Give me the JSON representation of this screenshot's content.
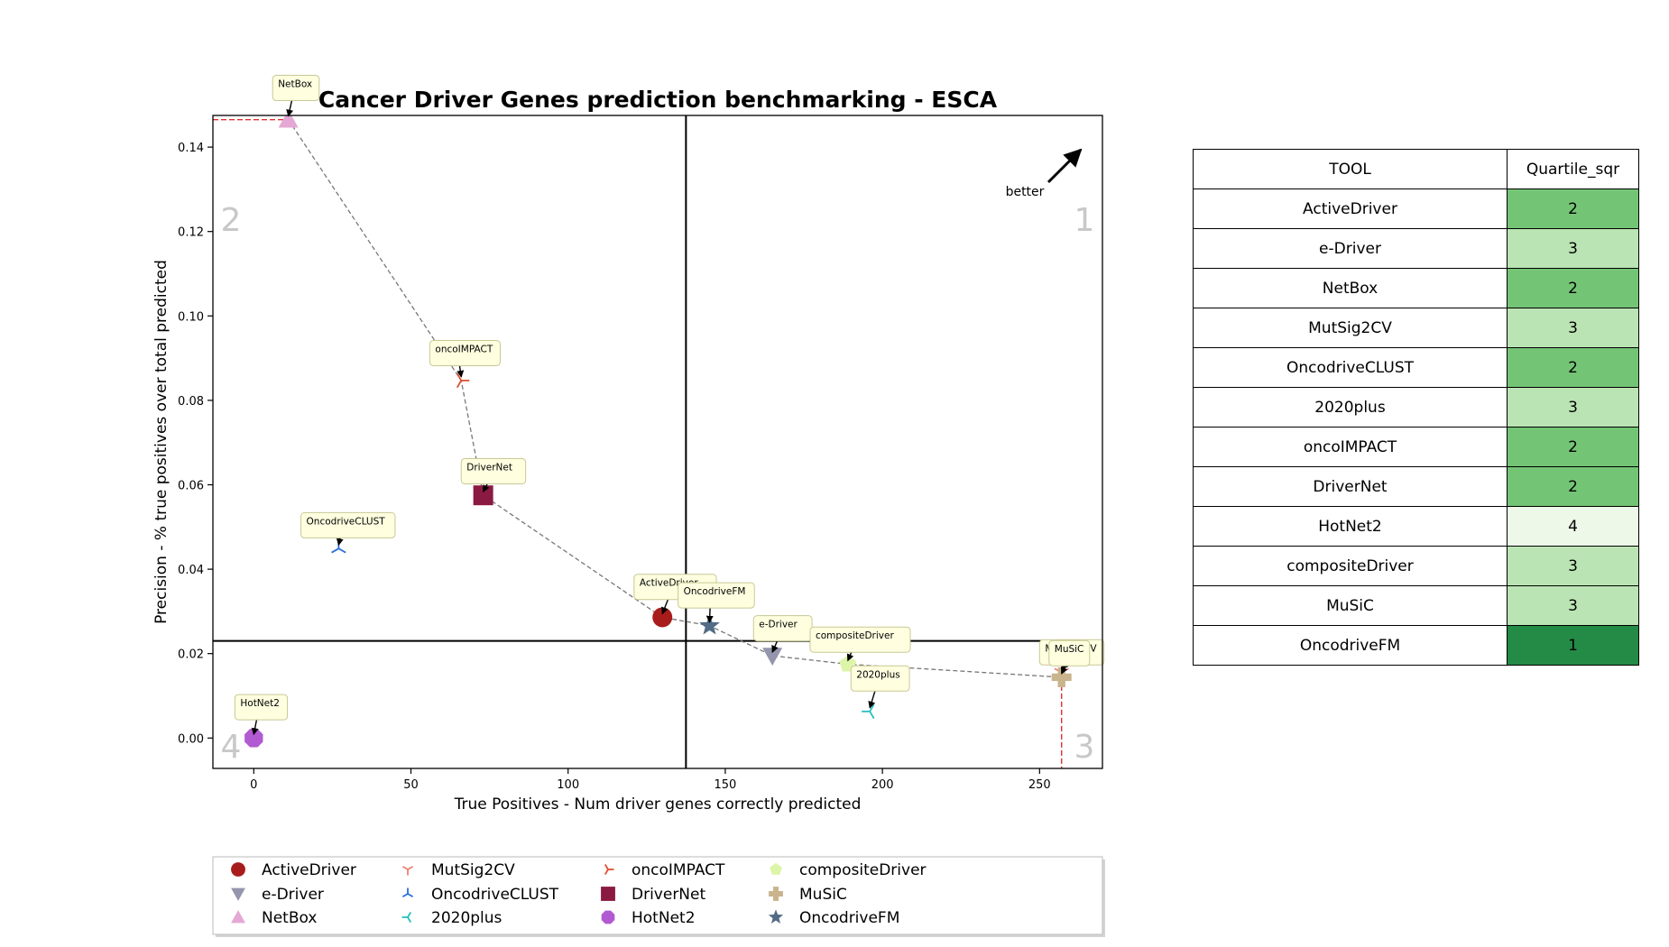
{
  "chart_data": {
    "type": "scatter",
    "title": "Cancer Driver Genes prediction benchmarking - ESCA",
    "xlabel": "True Positives - Num driver genes correctly predicted",
    "ylabel": "Precision - % true positives over total predicted",
    "xlim": [
      -13,
      270
    ],
    "ylim": [
      -0.0072,
      0.1475
    ],
    "xticks": [
      0,
      50,
      100,
      150,
      200,
      250
    ],
    "yticks": [
      0.0,
      0.02,
      0.04,
      0.06,
      0.08,
      0.1,
      0.12,
      0.14
    ],
    "xtick_labels": [
      "0",
      "50",
      "100",
      "150",
      "200",
      "250"
    ],
    "ytick_labels": [
      "0.00",
      "0.02",
      "0.04",
      "0.06",
      "0.08",
      "0.10",
      "0.12",
      "0.14"
    ],
    "median_x": 137.5,
    "median_y": 0.023,
    "quadrant_labels": [
      "1",
      "2",
      "3",
      "4"
    ],
    "better_label": "better",
    "grid": false,
    "legend_position": "bottom",
    "pareto_front": [
      "NetBox",
      "oncoIMPACT",
      "DriverNet",
      "ActiveDriver",
      "OncodriveFM",
      "e-Driver",
      "compositeDriver",
      "MuSiC"
    ],
    "series": [
      {
        "name": "ActiveDriver",
        "x": 130,
        "y": 0.0286,
        "marker": "circle",
        "color": "#a81c1c"
      },
      {
        "name": "e-Driver",
        "x": 165,
        "y": 0.0195,
        "marker": "triangle-down",
        "color": "#9595ad"
      },
      {
        "name": "NetBox",
        "x": 11,
        "y": 0.1465,
        "marker": "triangle-up",
        "color": "#e5a8d4"
      },
      {
        "name": "MutSig2CV",
        "x": 257,
        "y": 0.0155,
        "marker": "tri-down",
        "color": "#f08070"
      },
      {
        "name": "OncodriveCLUST",
        "x": 27,
        "y": 0.0449,
        "marker": "tri-up",
        "color": "#2a6fd6"
      },
      {
        "name": "2020plus",
        "x": 196,
        "y": 0.0063,
        "marker": "tri-left",
        "color": "#27c0c0"
      },
      {
        "name": "oncoIMPACT",
        "x": 66,
        "y": 0.0847,
        "marker": "tri-right",
        "color": "#e05030"
      },
      {
        "name": "DriverNet",
        "x": 73,
        "y": 0.0575,
        "marker": "square",
        "color": "#8b1a42"
      },
      {
        "name": "HotNet2",
        "x": 0,
        "y": 0.0,
        "marker": "octagon",
        "color": "#b15ad1"
      },
      {
        "name": "compositeDriver",
        "x": 189,
        "y": 0.0175,
        "marker": "pentagon",
        "color": "#ddf5a8"
      },
      {
        "name": "MuSiC",
        "x": 257,
        "y": 0.0144,
        "marker": "plus",
        "color": "#c9b48d"
      },
      {
        "name": "OncodriveFM",
        "x": 145,
        "y": 0.0266,
        "marker": "star",
        "color": "#526c86"
      }
    ],
    "annotations": [
      {
        "text": "NetBox",
        "target": "NetBox",
        "dx": -5,
        "dy": 0.0105
      },
      {
        "text": "oncoIMPACT",
        "target": "oncoIMPACT",
        "dx": -10,
        "dy": 0.0095
      },
      {
        "text": "DriverNet",
        "target": "DriverNet",
        "dx": -7,
        "dy": 0.0087
      },
      {
        "text": "OncodriveCLUST",
        "target": "OncodriveCLUST",
        "dx": -12,
        "dy": 0.0085
      },
      {
        "text": "ActiveDriver",
        "target": "ActiveDriver",
        "dx": -9,
        "dy": 0.0102
      },
      {
        "text": "OncodriveFM",
        "target": "OncodriveFM",
        "dx": -10,
        "dy": 0.0102
      },
      {
        "text": "e-Driver",
        "target": "e-Driver",
        "dx": -6,
        "dy": 0.0095
      },
      {
        "text": "compositeDriver",
        "target": "compositeDriver",
        "dx": -12,
        "dy": 0.0088
      },
      {
        "text": "2020plus",
        "target": "2020plus",
        "dx": -6,
        "dy": 0.0108
      },
      {
        "text": "MutSig2CV",
        "target": "MutSig2CV",
        "dx": -7,
        "dy": 0.0078
      },
      {
        "text": "MuSiC",
        "target": "MuSiC",
        "dx": -4,
        "dy": 0.0087
      },
      {
        "text": "HotNet2",
        "target": "HotNet2",
        "dx": -6,
        "dy": 0.0103
      }
    ]
  },
  "table": {
    "headers": [
      "TOOL",
      "Quartile_sqr"
    ],
    "rows": [
      {
        "tool": "ActiveDriver",
        "quartile": "2"
      },
      {
        "tool": "e-Driver",
        "quartile": "3"
      },
      {
        "tool": "NetBox",
        "quartile": "2"
      },
      {
        "tool": "MutSig2CV",
        "quartile": "3"
      },
      {
        "tool": "OncodriveCLUST",
        "quartile": "2"
      },
      {
        "tool": "2020plus",
        "quartile": "3"
      },
      {
        "tool": "oncoIMPACT",
        "quartile": "2"
      },
      {
        "tool": "DriverNet",
        "quartile": "2"
      },
      {
        "tool": "HotNet2",
        "quartile": "4"
      },
      {
        "tool": "compositeDriver",
        "quartile": "3"
      },
      {
        "tool": "MuSiC",
        "quartile": "3"
      },
      {
        "tool": "OncodriveFM",
        "quartile": "1"
      }
    ],
    "quartile_colors": {
      "1": "#238b45",
      "2": "#74c476",
      "3": "#bae4b3",
      "4": "#edf8e9"
    }
  }
}
